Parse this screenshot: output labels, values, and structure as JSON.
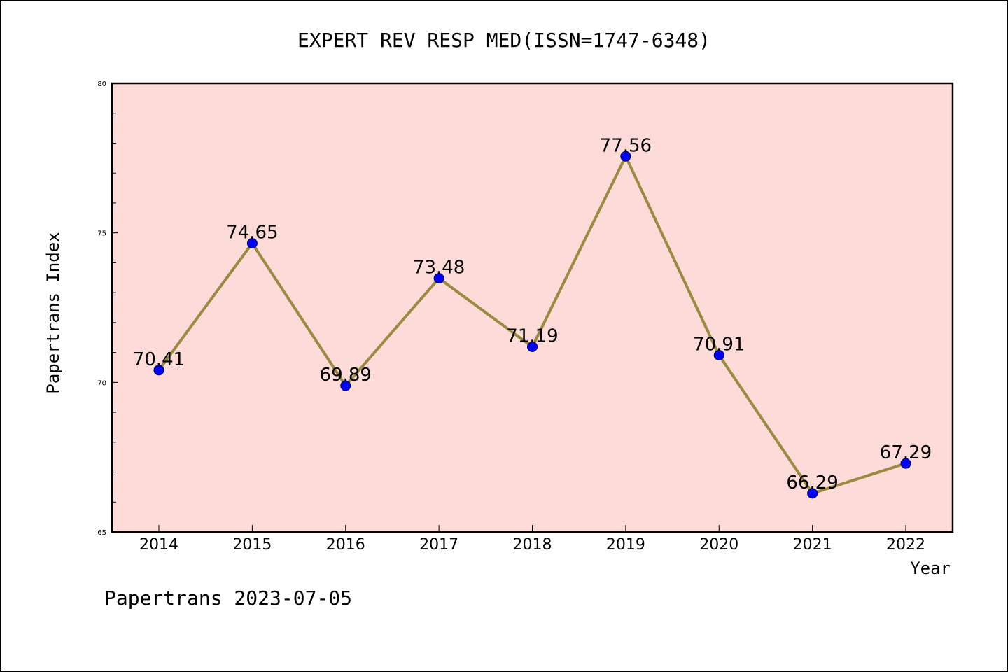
{
  "footer_text": "Papertrans 2023-07-05",
  "chart_data": {
    "type": "line",
    "title": "EXPERT REV RESP MED(ISSN=1747-6348)",
    "xlabel": "Year",
    "ylabel": "Papertrans Index",
    "categories": [
      "2014",
      "2015",
      "2016",
      "2017",
      "2018",
      "2019",
      "2020",
      "2021",
      "2022"
    ],
    "values": [
      70.41,
      74.65,
      69.89,
      73.48,
      71.19,
      77.56,
      70.91,
      66.29,
      67.29
    ],
    "value_labels": [
      "70.41",
      "74.65",
      "69.89",
      "73.48",
      "71.19",
      "77.56",
      "70.91",
      "66.29",
      "67.29"
    ],
    "ylim": [
      65,
      80
    ],
    "yticks": [
      65,
      70,
      75,
      80
    ],
    "ytick_labels": [
      "65",
      "70",
      "75",
      "80"
    ],
    "grid": false,
    "legend": "none",
    "colors": {
      "plot_background": "#fddbd8",
      "line": "#9b8a42",
      "marker": "#0000ff",
      "marker_edge": "#000033"
    }
  }
}
